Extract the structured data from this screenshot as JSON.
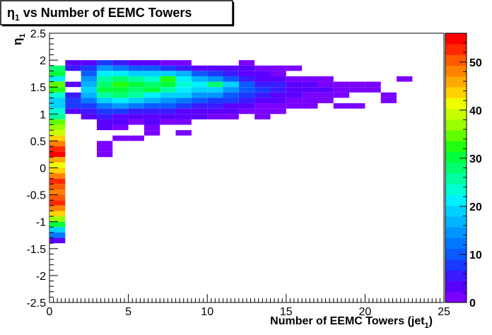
{
  "chart_data": {
    "type": "heatmap",
    "title": "η",
    "title_sub": "1",
    "title_rest": " vs Number of EEMC Towers",
    "xlabel": "Number of EEMC Towers (jet",
    "xlabel_sub": "1",
    "xlabel_end": ")",
    "ylabel": "η",
    "ylabel_sub": "1",
    "xlim": [
      0,
      25
    ],
    "ylim": [
      -2.5,
      2.5
    ],
    "x_ticks": [
      "0",
      "5",
      "10",
      "15",
      "20",
      "25"
    ],
    "y_ticks": [
      "2.5",
      "2",
      "1.5",
      "1",
      "0.5",
      "0",
      "-0.5",
      "-1",
      "-1.5",
      "-2",
      "-2.5"
    ],
    "z_ticks": [
      "0",
      "10",
      "20",
      "30",
      "40",
      "50"
    ],
    "zlim": [
      0,
      56
    ],
    "bin_width_x": 1,
    "bin_height_y": 0.1,
    "grid": false,
    "palette": [
      "#7a00ff",
      "#5a00ff",
      "#3a1aff",
      "#1a3aff",
      "#0a5aff",
      "#0078ff",
      "#0096ff",
      "#00b4ff",
      "#00d2ff",
      "#00f0ff",
      "#00ffd2",
      "#00ffa0",
      "#00ff6e",
      "#00ff3c",
      "#20ff10",
      "#60ff00",
      "#9aff00",
      "#c8ff00",
      "#f0ff00",
      "#ffd200",
      "#ffaa00",
      "#ff8200",
      "#ff5a00",
      "#ff2800",
      "#ff0000"
    ],
    "columns": [
      {
        "x": 0,
        "cells": [
          [
            1.8,
            28
          ],
          [
            1.7,
            30
          ],
          [
            1.6,
            22
          ],
          [
            1.5,
            34
          ],
          [
            1.4,
            32
          ],
          [
            1.3,
            24
          ],
          [
            1.2,
            20
          ],
          [
            1.1,
            20
          ],
          [
            1.0,
            24
          ],
          [
            0.9,
            26
          ],
          [
            0.8,
            34
          ],
          [
            0.7,
            38
          ],
          [
            0.6,
            40
          ],
          [
            0.5,
            44
          ],
          [
            0.4,
            48
          ],
          [
            0.3,
            52
          ],
          [
            0.2,
            54
          ],
          [
            0.1,
            46
          ],
          [
            0.0,
            42
          ],
          [
            -0.1,
            44
          ],
          [
            -0.2,
            48
          ],
          [
            -0.3,
            52
          ],
          [
            -0.4,
            50
          ],
          [
            -0.5,
            48
          ],
          [
            -0.6,
            50
          ],
          [
            -0.7,
            52
          ],
          [
            -0.8,
            48
          ],
          [
            -0.9,
            44
          ],
          [
            -1.0,
            38
          ],
          [
            -1.1,
            30
          ],
          [
            -1.2,
            20
          ],
          [
            -1.3,
            12
          ],
          [
            -1.4,
            4
          ]
        ]
      },
      {
        "x": 1,
        "cells": [
          [
            1.9,
            3
          ],
          [
            1.8,
            5
          ],
          [
            1.5,
            4
          ],
          [
            1.3,
            6
          ],
          [
            1.2,
            8
          ],
          [
            1.1,
            7
          ],
          [
            1.0,
            3
          ]
        ]
      },
      {
        "x": 2,
        "cells": [
          [
            1.9,
            4
          ],
          [
            1.8,
            8
          ],
          [
            1.7,
            10
          ],
          [
            1.6,
            14
          ],
          [
            1.5,
            16
          ],
          [
            1.4,
            18
          ],
          [
            1.3,
            16
          ],
          [
            1.2,
            12
          ],
          [
            1.1,
            8
          ],
          [
            1.0,
            6
          ],
          [
            0.9,
            3
          ]
        ]
      },
      {
        "x": 3,
        "cells": [
          [
            1.9,
            8
          ],
          [
            1.8,
            14
          ],
          [
            1.7,
            22
          ],
          [
            1.6,
            26
          ],
          [
            1.5,
            28
          ],
          [
            1.4,
            30
          ],
          [
            1.3,
            26
          ],
          [
            1.2,
            20
          ],
          [
            1.1,
            12
          ],
          [
            1.0,
            8
          ],
          [
            0.9,
            6
          ],
          [
            0.8,
            4
          ],
          [
            0.7,
            3
          ],
          [
            0.4,
            2
          ],
          [
            0.3,
            2
          ],
          [
            0.2,
            2
          ]
        ]
      },
      {
        "x": 4,
        "cells": [
          [
            1.9,
            6
          ],
          [
            1.8,
            12
          ],
          [
            1.7,
            22
          ],
          [
            1.6,
            28
          ],
          [
            1.5,
            32
          ],
          [
            1.4,
            30
          ],
          [
            1.3,
            28
          ],
          [
            1.2,
            22
          ],
          [
            1.1,
            14
          ],
          [
            1.0,
            8
          ],
          [
            0.9,
            4
          ],
          [
            0.8,
            3
          ],
          [
            0.7,
            2
          ],
          [
            0.5,
            2
          ]
        ]
      },
      {
        "x": 5,
        "cells": [
          [
            1.9,
            4
          ],
          [
            1.8,
            10
          ],
          [
            1.7,
            20
          ],
          [
            1.6,
            26
          ],
          [
            1.5,
            30
          ],
          [
            1.4,
            28
          ],
          [
            1.3,
            26
          ],
          [
            1.2,
            18
          ],
          [
            1.1,
            12
          ],
          [
            1.0,
            6
          ],
          [
            0.9,
            4
          ],
          [
            0.8,
            2
          ],
          [
            0.5,
            2
          ]
        ]
      },
      {
        "x": 6,
        "cells": [
          [
            1.9,
            3
          ],
          [
            1.8,
            10
          ],
          [
            1.7,
            18
          ],
          [
            1.6,
            24
          ],
          [
            1.5,
            28
          ],
          [
            1.4,
            30
          ],
          [
            1.3,
            22
          ],
          [
            1.2,
            16
          ],
          [
            1.1,
            10
          ],
          [
            1.0,
            6
          ],
          [
            0.9,
            3
          ],
          [
            0.8,
            3
          ],
          [
            0.7,
            2
          ],
          [
            0.6,
            2
          ]
        ]
      },
      {
        "x": 7,
        "cells": [
          [
            1.9,
            2
          ],
          [
            1.8,
            8
          ],
          [
            1.7,
            20
          ],
          [
            1.6,
            32
          ],
          [
            1.5,
            30
          ],
          [
            1.4,
            26
          ],
          [
            1.3,
            20
          ],
          [
            1.2,
            14
          ],
          [
            1.1,
            10
          ],
          [
            1.0,
            6
          ],
          [
            0.9,
            3
          ],
          [
            0.8,
            2
          ]
        ]
      },
      {
        "x": 8,
        "cells": [
          [
            1.9,
            2
          ],
          [
            1.8,
            6
          ],
          [
            1.7,
            16
          ],
          [
            1.6,
            22
          ],
          [
            1.5,
            24
          ],
          [
            1.4,
            22
          ],
          [
            1.3,
            18
          ],
          [
            1.2,
            12
          ],
          [
            1.1,
            8
          ],
          [
            1.0,
            4
          ],
          [
            0.9,
            3
          ],
          [
            0.8,
            2
          ],
          [
            0.6,
            2
          ]
        ]
      },
      {
        "x": 9,
        "cells": [
          [
            1.8,
            4
          ],
          [
            1.7,
            10
          ],
          [
            1.6,
            16
          ],
          [
            1.5,
            22
          ],
          [
            1.4,
            20
          ],
          [
            1.3,
            14
          ],
          [
            1.2,
            10
          ],
          [
            1.1,
            6
          ],
          [
            1.0,
            4
          ],
          [
            0.9,
            3
          ]
        ]
      },
      {
        "x": 10,
        "cells": [
          [
            1.8,
            4
          ],
          [
            1.7,
            8
          ],
          [
            1.6,
            14
          ],
          [
            1.5,
            28
          ],
          [
            1.4,
            18
          ],
          [
            1.3,
            14
          ],
          [
            1.2,
            8
          ],
          [
            1.1,
            6
          ],
          [
            1.0,
            4
          ],
          [
            0.9,
            2
          ]
        ]
      },
      {
        "x": 11,
        "cells": [
          [
            1.8,
            3
          ],
          [
            1.7,
            6
          ],
          [
            1.6,
            10
          ],
          [
            1.5,
            20
          ],
          [
            1.4,
            14
          ],
          [
            1.3,
            10
          ],
          [
            1.2,
            8
          ],
          [
            1.1,
            4
          ],
          [
            1.0,
            3
          ],
          [
            0.9,
            2
          ]
        ]
      },
      {
        "x": 12,
        "cells": [
          [
            1.9,
            2
          ],
          [
            1.8,
            3
          ],
          [
            1.7,
            4
          ],
          [
            1.6,
            6
          ],
          [
            1.5,
            10
          ],
          [
            1.4,
            10
          ],
          [
            1.3,
            8
          ],
          [
            1.2,
            6
          ],
          [
            1.1,
            3
          ],
          [
            1.0,
            2
          ]
        ]
      },
      {
        "x": 13,
        "cells": [
          [
            1.8,
            2
          ],
          [
            1.7,
            3
          ],
          [
            1.6,
            4
          ],
          [
            1.5,
            6
          ],
          [
            1.4,
            8
          ],
          [
            1.3,
            6
          ],
          [
            1.2,
            4
          ],
          [
            1.1,
            2
          ],
          [
            1.0,
            2
          ],
          [
            0.9,
            2
          ]
        ]
      },
      {
        "x": 14,
        "cells": [
          [
            1.8,
            2
          ],
          [
            1.7,
            2
          ],
          [
            1.6,
            4
          ],
          [
            1.5,
            6
          ],
          [
            1.4,
            6
          ],
          [
            1.3,
            4
          ],
          [
            1.2,
            3
          ],
          [
            1.1,
            2
          ],
          [
            1.0,
            2
          ]
        ]
      },
      {
        "x": 15,
        "cells": [
          [
            1.8,
            2
          ],
          [
            1.6,
            2
          ],
          [
            1.5,
            4
          ],
          [
            1.4,
            4
          ],
          [
            1.3,
            3
          ],
          [
            1.2,
            2
          ],
          [
            1.1,
            2
          ]
        ]
      },
      {
        "x": 16,
        "cells": [
          [
            1.6,
            2
          ],
          [
            1.5,
            3
          ],
          [
            1.4,
            3
          ],
          [
            1.3,
            2
          ],
          [
            1.2,
            2
          ],
          [
            1.1,
            2
          ]
        ]
      },
      {
        "x": 17,
        "cells": [
          [
            1.6,
            2
          ],
          [
            1.5,
            2
          ],
          [
            1.4,
            3
          ],
          [
            1.3,
            2
          ],
          [
            1.2,
            2
          ]
        ]
      },
      {
        "x": 18,
        "cells": [
          [
            1.5,
            2
          ],
          [
            1.4,
            2
          ],
          [
            1.3,
            2
          ],
          [
            1.1,
            2
          ]
        ]
      },
      {
        "x": 19,
        "cells": [
          [
            1.5,
            2
          ],
          [
            1.4,
            2
          ],
          [
            1.1,
            2
          ]
        ]
      },
      {
        "x": 20,
        "cells": [
          [
            1.5,
            2
          ],
          [
            1.4,
            2
          ]
        ]
      },
      {
        "x": 21,
        "cells": [
          [
            1.3,
            2
          ],
          [
            1.2,
            2
          ]
        ]
      },
      {
        "x": 22,
        "cells": [
          [
            1.6,
            2
          ]
        ]
      }
    ]
  }
}
